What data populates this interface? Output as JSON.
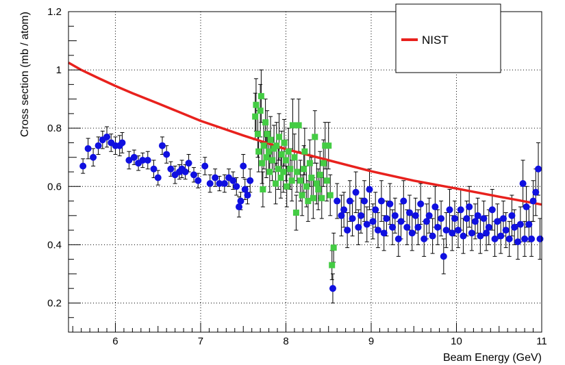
{
  "chart_data": {
    "type": "scatter",
    "title": "",
    "xlabel": "Beam Energy (GeV)",
    "ylabel": "Cross section (mb / atom)",
    "xlim": [
      5.45,
      11.0
    ],
    "ylim": [
      0.1,
      1.2
    ],
    "x_ticks": [
      "6",
      "7",
      "8",
      "9",
      "10",
      "11"
    ],
    "y_ticks": [
      "0.2",
      "0.4",
      "0.6",
      "0.8",
      "1",
      "1.2"
    ],
    "grid": true,
    "legend": {
      "placement": "top-right",
      "entries": [
        "NIST"
      ]
    },
    "colors": {
      "nist": "#e8211d",
      "blue_series": "#1010e0",
      "green_series": "#44cc44",
      "error_bar": "#000000"
    },
    "series": [
      {
        "name": "NIST",
        "kind": "line",
        "x": [
          5.45,
          5.6,
          5.8,
          6.0,
          6.2,
          6.5,
          7.0,
          7.5,
          8.0,
          8.5,
          9.0,
          9.5,
          10.0,
          10.5,
          11.0
        ],
        "y": [
          1.025,
          1.0,
          0.972,
          0.945,
          0.92,
          0.885,
          0.825,
          0.775,
          0.728,
          0.69,
          0.652,
          0.62,
          0.593,
          0.565,
          0.538
        ]
      },
      {
        "kind": "points",
        "marker": "circle",
        "points": [
          [
            5.62,
            0.67,
            0.025
          ],
          [
            5.68,
            0.73,
            0.035
          ],
          [
            5.74,
            0.7,
            0.03
          ],
          [
            5.8,
            0.74,
            0.03
          ],
          [
            5.85,
            0.76,
            0.03
          ],
          [
            5.9,
            0.77,
            0.035
          ],
          [
            5.95,
            0.75,
            0.03
          ],
          [
            6.0,
            0.74,
            0.03
          ],
          [
            6.05,
            0.74,
            0.035
          ],
          [
            6.08,
            0.75,
            0.035
          ],
          [
            6.16,
            0.69,
            0.03
          ],
          [
            6.22,
            0.7,
            0.025
          ],
          [
            6.27,
            0.68,
            0.025
          ],
          [
            6.32,
            0.69,
            0.025
          ],
          [
            6.38,
            0.69,
            0.03
          ],
          [
            6.45,
            0.66,
            0.03
          ],
          [
            6.5,
            0.63,
            0.025
          ],
          [
            6.55,
            0.74,
            0.03
          ],
          [
            6.6,
            0.71,
            0.03
          ],
          [
            6.65,
            0.66,
            0.025
          ],
          [
            6.7,
            0.64,
            0.03
          ],
          [
            6.75,
            0.65,
            0.025
          ],
          [
            6.78,
            0.66,
            0.03
          ],
          [
            6.82,
            0.65,
            0.025
          ],
          [
            6.86,
            0.68,
            0.03
          ],
          [
            6.92,
            0.64,
            0.025
          ],
          [
            6.97,
            0.62,
            0.025
          ],
          [
            7.05,
            0.67,
            0.03
          ],
          [
            7.11,
            0.61,
            0.03
          ],
          [
            7.17,
            0.63,
            0.03
          ],
          [
            7.22,
            0.61,
            0.025
          ],
          [
            7.28,
            0.61,
            0.03
          ],
          [
            7.33,
            0.63,
            0.03
          ],
          [
            7.38,
            0.62,
            0.03
          ],
          [
            7.42,
            0.6,
            0.03
          ],
          [
            7.45,
            0.53,
            0.035
          ],
          [
            7.47,
            0.55,
            0.03
          ],
          [
            7.5,
            0.67,
            0.04
          ],
          [
            7.52,
            0.59,
            0.035
          ],
          [
            7.55,
            0.57,
            0.03
          ],
          [
            7.58,
            0.62,
            0.04
          ],
          [
            8.55,
            0.25,
            0.05
          ],
          [
            8.6,
            0.55,
            0.06
          ],
          [
            8.65,
            0.5,
            0.07
          ],
          [
            8.68,
            0.52,
            0.06
          ],
          [
            8.72,
            0.45,
            0.06
          ],
          [
            8.75,
            0.55,
            0.07
          ],
          [
            8.78,
            0.49,
            0.06
          ],
          [
            8.82,
            0.58,
            0.07
          ],
          [
            8.85,
            0.46,
            0.06
          ],
          [
            8.88,
            0.5,
            0.06
          ],
          [
            8.92,
            0.55,
            0.07
          ],
          [
            8.95,
            0.47,
            0.06
          ],
          [
            8.98,
            0.59,
            0.07
          ],
          [
            9.02,
            0.48,
            0.06
          ],
          [
            9.05,
            0.52,
            0.06
          ],
          [
            9.08,
            0.45,
            0.06
          ],
          [
            9.12,
            0.55,
            0.07
          ],
          [
            9.15,
            0.44,
            0.06
          ],
          [
            9.18,
            0.49,
            0.06
          ],
          [
            9.22,
            0.54,
            0.07
          ],
          [
            9.25,
            0.46,
            0.06
          ],
          [
            9.28,
            0.5,
            0.06
          ],
          [
            9.32,
            0.42,
            0.06
          ],
          [
            9.35,
            0.48,
            0.06
          ],
          [
            9.38,
            0.55,
            0.07
          ],
          [
            9.42,
            0.46,
            0.06
          ],
          [
            9.45,
            0.51,
            0.06
          ],
          [
            9.48,
            0.44,
            0.06
          ],
          [
            9.52,
            0.5,
            0.06
          ],
          [
            9.55,
            0.46,
            0.06
          ],
          [
            9.58,
            0.54,
            0.07
          ],
          [
            9.62,
            0.42,
            0.06
          ],
          [
            9.65,
            0.48,
            0.06
          ],
          [
            9.68,
            0.5,
            0.06
          ],
          [
            9.72,
            0.43,
            0.06
          ],
          [
            9.75,
            0.53,
            0.07
          ],
          [
            9.78,
            0.46,
            0.06
          ],
          [
            9.82,
            0.49,
            0.06
          ],
          [
            9.85,
            0.36,
            0.06
          ],
          [
            9.88,
            0.45,
            0.06
          ],
          [
            9.92,
            0.52,
            0.07
          ],
          [
            9.95,
            0.44,
            0.06
          ],
          [
            9.98,
            0.49,
            0.06
          ],
          [
            10.02,
            0.45,
            0.06
          ],
          [
            10.05,
            0.52,
            0.07
          ],
          [
            10.08,
            0.43,
            0.06
          ],
          [
            10.12,
            0.49,
            0.06
          ],
          [
            10.15,
            0.53,
            0.07
          ],
          [
            10.18,
            0.44,
            0.06
          ],
          [
            10.22,
            0.48,
            0.06
          ],
          [
            10.25,
            0.5,
            0.06
          ],
          [
            10.28,
            0.43,
            0.06
          ],
          [
            10.32,
            0.49,
            0.06
          ],
          [
            10.35,
            0.44,
            0.06
          ],
          [
            10.38,
            0.46,
            0.06
          ],
          [
            10.42,
            0.52,
            0.07
          ],
          [
            10.45,
            0.42,
            0.06
          ],
          [
            10.48,
            0.48,
            0.06
          ],
          [
            10.52,
            0.43,
            0.06
          ],
          [
            10.55,
            0.49,
            0.06
          ],
          [
            10.58,
            0.45,
            0.06
          ],
          [
            10.62,
            0.42,
            0.06
          ],
          [
            10.65,
            0.5,
            0.07
          ],
          [
            10.68,
            0.46,
            0.06
          ],
          [
            10.72,
            0.41,
            0.06
          ],
          [
            10.75,
            0.47,
            0.06
          ],
          [
            10.78,
            0.61,
            0.08
          ],
          [
            10.8,
            0.42,
            0.06
          ],
          [
            10.82,
            0.53,
            0.07
          ],
          [
            10.85,
            0.47,
            0.06
          ],
          [
            10.88,
            0.42,
            0.06
          ],
          [
            10.9,
            0.55,
            0.07
          ],
          [
            10.93,
            0.58,
            0.08
          ],
          [
            10.96,
            0.66,
            0.09
          ],
          [
            10.98,
            0.42,
            0.07
          ]
        ]
      },
      {
        "kind": "points",
        "marker": "square",
        "points": [
          [
            7.64,
            0.84,
            0.08
          ],
          [
            7.65,
            0.88,
            0.09
          ],
          [
            7.67,
            0.78,
            0.08
          ],
          [
            7.68,
            0.72,
            0.07
          ],
          [
            7.7,
            0.86,
            0.09
          ],
          [
            7.71,
            0.91,
            0.09
          ],
          [
            7.72,
            0.68,
            0.07
          ],
          [
            7.73,
            0.59,
            0.06
          ],
          [
            7.74,
            0.74,
            0.08
          ],
          [
            7.76,
            0.82,
            0.08
          ],
          [
            7.77,
            0.7,
            0.07
          ],
          [
            7.78,
            0.78,
            0.08
          ],
          [
            7.8,
            0.72,
            0.07
          ],
          [
            7.81,
            0.65,
            0.07
          ],
          [
            7.82,
            0.76,
            0.08
          ],
          [
            7.84,
            0.69,
            0.07
          ],
          [
            7.86,
            0.73,
            0.08
          ],
          [
            7.88,
            0.61,
            0.07
          ],
          [
            7.89,
            0.74,
            0.08
          ],
          [
            7.91,
            0.66,
            0.07
          ],
          [
            7.92,
            0.77,
            0.08
          ],
          [
            7.94,
            0.63,
            0.07
          ],
          [
            7.95,
            0.71,
            0.08
          ],
          [
            7.97,
            0.65,
            0.07
          ],
          [
            7.98,
            0.75,
            0.08
          ],
          [
            8.0,
            0.69,
            0.07
          ],
          [
            8.01,
            0.6,
            0.07
          ],
          [
            8.03,
            0.72,
            0.08
          ],
          [
            8.05,
            0.66,
            0.07
          ],
          [
            8.07,
            0.62,
            0.07
          ],
          [
            8.08,
            0.81,
            0.09
          ],
          [
            8.1,
            0.7,
            0.08
          ],
          [
            8.12,
            0.51,
            0.06
          ],
          [
            8.13,
            0.65,
            0.07
          ],
          [
            8.15,
            0.81,
            0.09
          ],
          [
            8.17,
            0.62,
            0.07
          ],
          [
            8.19,
            0.57,
            0.07
          ],
          [
            8.21,
            0.66,
            0.08
          ],
          [
            8.22,
            0.72,
            0.08
          ],
          [
            8.24,
            0.6,
            0.07
          ],
          [
            8.26,
            0.55,
            0.07
          ],
          [
            8.28,
            0.68,
            0.08
          ],
          [
            8.3,
            0.63,
            0.07
          ],
          [
            8.32,
            0.56,
            0.07
          ],
          [
            8.34,
            0.77,
            0.09
          ],
          [
            8.36,
            0.61,
            0.07
          ],
          [
            8.38,
            0.59,
            0.07
          ],
          [
            8.4,
            0.64,
            0.08
          ],
          [
            8.42,
            0.56,
            0.07
          ],
          [
            8.44,
            0.68,
            0.08
          ],
          [
            8.46,
            0.74,
            0.08
          ],
          [
            8.48,
            0.62,
            0.07
          ],
          [
            8.5,
            0.74,
            0.08
          ],
          [
            8.52,
            0.57,
            0.07
          ],
          [
            8.54,
            0.33,
            0.05
          ],
          [
            8.56,
            0.39,
            0.05
          ]
        ]
      }
    ]
  }
}
